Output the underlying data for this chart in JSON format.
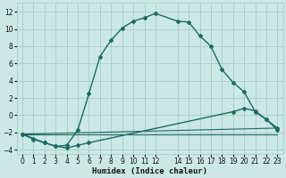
{
  "xlabel": "Humidex (Indice chaleur)",
  "background_color": "#cbe8e5",
  "grid_color": "#a8ccc8",
  "line_color": "#1a6b62",
  "xlim": [
    -0.5,
    23.5
  ],
  "ylim": [
    -4.5,
    13.0
  ],
  "xticks": [
    0,
    1,
    2,
    3,
    4,
    5,
    6,
    7,
    8,
    9,
    10,
    11,
    12,
    14,
    15,
    16,
    17,
    18,
    19,
    20,
    21,
    22,
    23
  ],
  "yticks": [
    -4,
    -2,
    0,
    2,
    4,
    6,
    8,
    10,
    12
  ],
  "series1_x": [
    0,
    1,
    2,
    3,
    4,
    5,
    6,
    7,
    8,
    9,
    10,
    11,
    12,
    14,
    15,
    16,
    17,
    18,
    19,
    20,
    21,
    22,
    23
  ],
  "series1_y": [
    -2.2,
    -2.7,
    -3.2,
    -3.6,
    -3.5,
    -1.7,
    2.5,
    6.8,
    8.7,
    10.1,
    10.9,
    11.3,
    11.8,
    10.9,
    10.8,
    9.2,
    8.0,
    5.3,
    3.8,
    2.7,
    0.4,
    -0.5,
    -1.5
  ],
  "series2_x": [
    0,
    1,
    2,
    3,
    4,
    5,
    6,
    19,
    20,
    21,
    22,
    23
  ],
  "series2_y": [
    -2.2,
    -2.8,
    -3.2,
    -3.6,
    -3.8,
    -3.5,
    -3.2,
    0.4,
    0.8,
    0.5,
    -0.5,
    -1.7
  ],
  "series3_x": [
    0,
    23
  ],
  "series3_y": [
    -2.2,
    -1.5
  ],
  "series4_x": [
    0,
    23
  ],
  "series4_y": [
    -2.2,
    -2.2
  ]
}
